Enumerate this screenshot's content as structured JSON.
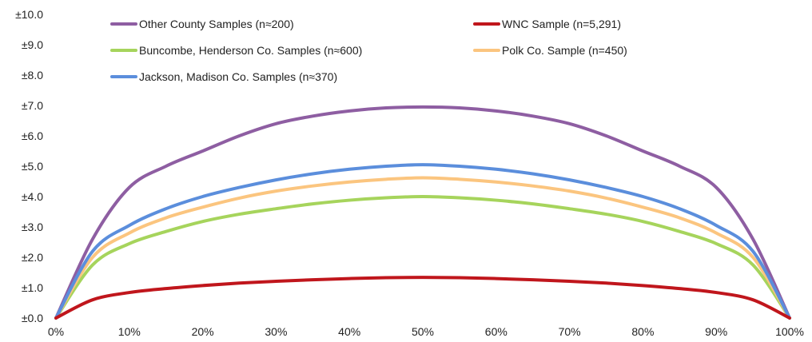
{
  "chart_data": {
    "type": "line",
    "title": "",
    "xlabel": "",
    "ylabel": "",
    "xlim": [
      0,
      100
    ],
    "ylim": [
      0,
      10
    ],
    "grid": false,
    "legend_position": "top",
    "x_ticks": [
      "0%",
      "10%",
      "20%",
      "30%",
      "40%",
      "50%",
      "60%",
      "70%",
      "80%",
      "90%",
      "100%"
    ],
    "y_ticks": [
      "±0.0",
      "±1.0",
      "±2.0",
      "±3.0",
      "±4.0",
      "±5.0",
      "±6.0",
      "±7.0",
      "±8.0",
      "±9.0",
      "±10.0"
    ],
    "x": [
      0,
      5,
      10,
      15,
      20,
      25,
      30,
      35,
      40,
      45,
      50,
      55,
      60,
      65,
      70,
      75,
      80,
      85,
      90,
      95,
      100
    ],
    "series": [
      {
        "name": "Other County Samples (n≈200)",
        "color": "#8e5ea2",
        "values": [
          0,
          2.6,
          4.3,
          5.0,
          5.5,
          6.0,
          6.4,
          6.65,
          6.82,
          6.92,
          6.95,
          6.92,
          6.82,
          6.65,
          6.4,
          6.0,
          5.5,
          5.0,
          4.3,
          2.6,
          0
        ]
      },
      {
        "name": "WNC Sample (n=5,291)",
        "color": "#c0161c",
        "values": [
          0,
          0.6,
          0.84,
          0.97,
          1.07,
          1.15,
          1.21,
          1.26,
          1.3,
          1.33,
          1.34,
          1.33,
          1.3,
          1.26,
          1.21,
          1.15,
          1.07,
          0.97,
          0.84,
          0.6,
          0
        ]
      },
      {
        "name": "Buncombe, Henderson Co. Samples (n≈600)",
        "color": "#a6d45c",
        "values": [
          0,
          1.75,
          2.45,
          2.85,
          3.18,
          3.42,
          3.6,
          3.76,
          3.88,
          3.96,
          4.0,
          3.96,
          3.88,
          3.76,
          3.6,
          3.42,
          3.18,
          2.85,
          2.45,
          1.75,
          0
        ]
      },
      {
        "name": "Polk Co. Sample (n=450)",
        "color": "#fbc57f",
        "values": [
          0,
          2.0,
          2.8,
          3.3,
          3.65,
          3.95,
          4.18,
          4.35,
          4.48,
          4.57,
          4.62,
          4.57,
          4.48,
          4.35,
          4.18,
          3.95,
          3.65,
          3.3,
          2.8,
          2.0,
          0
        ]
      },
      {
        "name": "Jackson, Madison Co. Samples (n≈370)",
        "color": "#5b8edc",
        "values": [
          0,
          2.2,
          3.05,
          3.6,
          4.0,
          4.3,
          4.55,
          4.75,
          4.9,
          5.0,
          5.05,
          5.0,
          4.9,
          4.75,
          4.55,
          4.3,
          4.0,
          3.6,
          3.05,
          2.2,
          0
        ]
      }
    ]
  }
}
